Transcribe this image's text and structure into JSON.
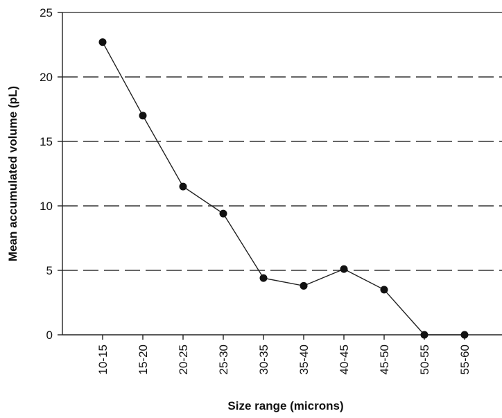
{
  "chart_data": {
    "type": "line",
    "title": "",
    "xlabel": "Size range (microns)",
    "ylabel": "Mean accumulated volume (pL)",
    "categories": [
      "10-15",
      "15-20",
      "20-25",
      "25-30",
      "30-35",
      "35-40",
      "40-45",
      "45-50",
      "50-55",
      "55-60"
    ],
    "series": [
      {
        "values": [
          22.7,
          17.0,
          11.5,
          9.4,
          4.4,
          3.8,
          5.1,
          3.5,
          0.0,
          0.0
        ]
      }
    ],
    "yticks": [
      "0",
      "5",
      "10",
      "15",
      "20",
      "25"
    ],
    "ylim": [
      0,
      25
    ],
    "grid": "horizontal dashed",
    "legend": "none",
    "colors": {
      "line": "#222222",
      "marker": "#111111",
      "grid": "#333333",
      "axis": "#222222"
    }
  }
}
